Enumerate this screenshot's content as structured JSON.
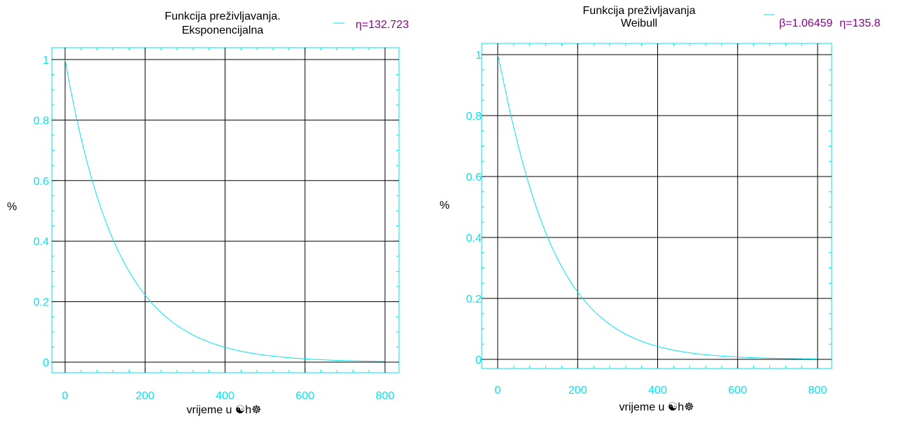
{
  "colors": {
    "frame": "#00e5ee",
    "curve": "#00e5ee",
    "grid": "#000000",
    "tick_label": "#00e5ee",
    "legend_text": "#8b008b"
  },
  "chart_data": [
    {
      "type": "line",
      "title_line1": "Funkcija preživljavanja.",
      "title_line2": "Eksponencijalna",
      "legend": [
        {
          "symbol": "η",
          "text": "=132.723"
        }
      ],
      "xlabel": "vrijeme u ☯h☸",
      "ylabel": "%",
      "xlim": [
        0,
        800
      ],
      "ylim": [
        0,
        1
      ],
      "xticks": [
        0,
        200,
        400,
        600,
        800
      ],
      "yticks": [
        0,
        0.2,
        0.4,
        0.6,
        0.8,
        1
      ],
      "grid": true,
      "model": {
        "kind": "exponential",
        "eta": 132.723
      },
      "series": [
        {
          "x": [
            0,
            25,
            50,
            75,
            100,
            125,
            150,
            175,
            200,
            250,
            300,
            350,
            400,
            450,
            500,
            550,
            600,
            650,
            700,
            750,
            800
          ],
          "y": [
            1.0,
            0.828,
            0.686,
            0.568,
            0.47,
            0.389,
            0.323,
            0.267,
            0.221,
            0.152,
            0.104,
            0.071,
            0.049,
            0.034,
            0.023,
            0.016,
            0.011,
            0.007,
            0.005,
            0.003,
            0.002
          ]
        }
      ]
    },
    {
      "type": "line",
      "title_line1": "Funkcija preživljavanja",
      "title_line2": "Weibull",
      "legend": [
        {
          "symbol": "β",
          "text": "=1.06459"
        },
        {
          "symbol": "η",
          "text": "=135.8"
        }
      ],
      "xlabel": "vrijeme u ☯h☸",
      "ylabel": "%",
      "xlim": [
        0,
        800
      ],
      "ylim": [
        0,
        1
      ],
      "xticks": [
        0,
        200,
        400,
        600,
        800
      ],
      "yticks": [
        0,
        0.2,
        0.4,
        0.6,
        0.8,
        1
      ],
      "grid": true,
      "model": {
        "kind": "weibull",
        "beta": 1.06459,
        "eta": 135.8
      },
      "series": [
        {
          "x": [
            0,
            25,
            50,
            75,
            100,
            125,
            150,
            175,
            200,
            250,
            300,
            350,
            400,
            450,
            500,
            550,
            600,
            650,
            700,
            750,
            800
          ],
          "y": [
            1.0,
            0.842,
            0.699,
            0.577,
            0.475,
            0.389,
            0.318,
            0.259,
            0.211,
            0.139,
            0.091,
            0.059,
            0.038,
            0.024,
            0.016,
            0.01,
            0.006,
            0.004,
            0.003,
            0.002,
            0.001
          ]
        }
      ]
    }
  ]
}
